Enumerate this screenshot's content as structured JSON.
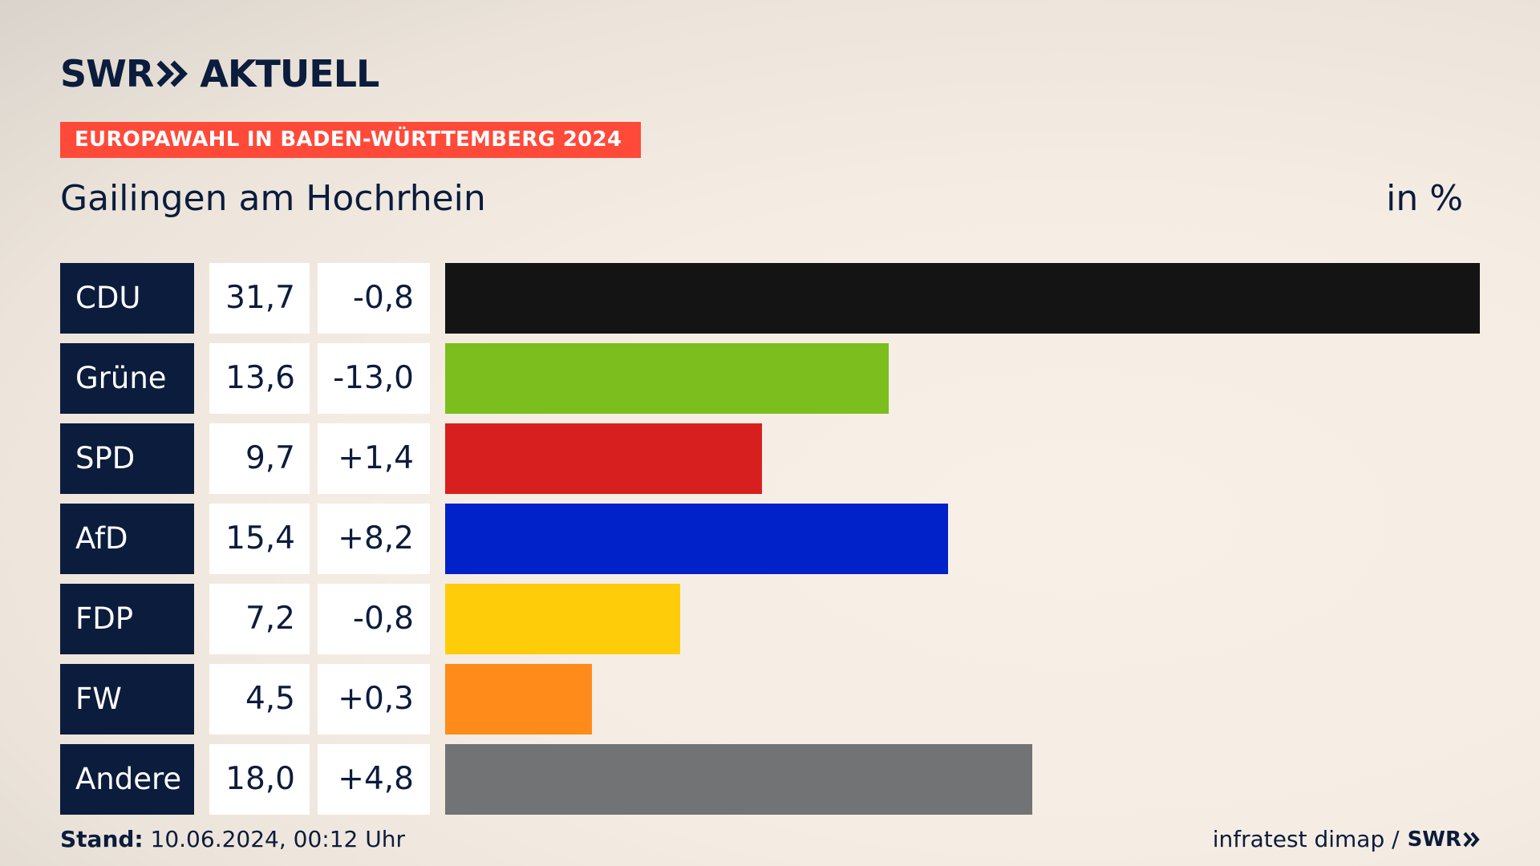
{
  "header": {
    "brand_swr": "SWR",
    "brand_aktuell": "AKTUELL",
    "topic": "EUROPAWAHL IN BADEN-WÜRTTEMBERG 2024",
    "subtitle": "Gailingen am Hochrhein",
    "unit": "in %"
  },
  "chart_data": {
    "type": "bar",
    "categories": [
      "CDU",
      "Grüne",
      "SPD",
      "AfD",
      "FDP",
      "FW",
      "Andere"
    ],
    "values": [
      31.7,
      13.6,
      9.7,
      15.4,
      7.2,
      4.5,
      18.0
    ],
    "value_labels": [
      "31,7",
      "13,6",
      "9,7",
      "15,4",
      "7,2",
      "4,5",
      "18,0"
    ],
    "diff_labels": [
      "-0,8",
      "-13,0",
      "+1,4",
      "+8,2",
      "-0,8",
      "+0,3",
      "+4,8"
    ],
    "colors": [
      "#141414",
      "#7bbe1e",
      "#d81f1f",
      "#0022c8",
      "#ffcc0a",
      "#ff8c1a",
      "#727374"
    ],
    "orientation": "horizontal"
  },
  "footer": {
    "stand_label": "Stand:",
    "stand_value": "10.06.2024, 00:12 Uhr",
    "source": "infratest dimap /",
    "source_brand": "SWR"
  }
}
